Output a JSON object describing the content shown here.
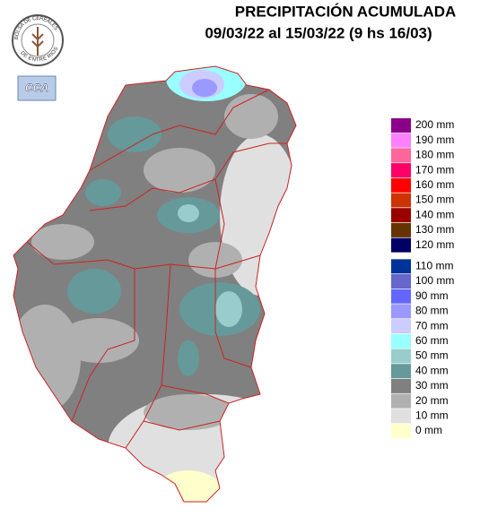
{
  "header": {
    "title": "PRECIPITACIÓN ACUMULADA",
    "subtitle": "09/03/22 al 15/03/22 (9 hs 16/03)"
  },
  "logo": {
    "top_text": "BOLSA DE CEREALES",
    "bottom_text": "DE ENTRE RIOS",
    "badge": "CCA"
  },
  "legend": [
    {
      "label": "200 mm",
      "color": "#8b008b"
    },
    {
      "label": "190 mm",
      "color": "#ff80ff"
    },
    {
      "label": "180 mm",
      "color": "#ff6699"
    },
    {
      "label": "170 mm",
      "color": "#ff0066"
    },
    {
      "label": "160 mm",
      "color": "#ff0000"
    },
    {
      "label": "150 mm",
      "color": "#cc3300"
    },
    {
      "label": "140 mm",
      "color": "#990000"
    },
    {
      "label": "130 mm",
      "color": "#663300"
    },
    {
      "label": "120 mm",
      "color": "#000066"
    },
    {
      "label": "110 mm",
      "color": "#003399"
    },
    {
      "label": "100 mm",
      "color": "#6666cc"
    },
    {
      "label": "90 mm",
      "color": "#6666ff"
    },
    {
      "label": "80 mm",
      "color": "#9999ff"
    },
    {
      "label": "70 mm",
      "color": "#ccccff"
    },
    {
      "label": "60 mm",
      "color": "#99ffff"
    },
    {
      "label": "50 mm",
      "color": "#99cccc"
    },
    {
      "label": "40 mm",
      "color": "#669999"
    },
    {
      "label": "30 mm",
      "color": "#808080"
    },
    {
      "label": "20 mm",
      "color": "#b0b0b0"
    },
    {
      "label": "10 mm",
      "color": "#e0e0e0"
    },
    {
      "label": "0 mm",
      "color": "#ffffcc"
    }
  ]
}
